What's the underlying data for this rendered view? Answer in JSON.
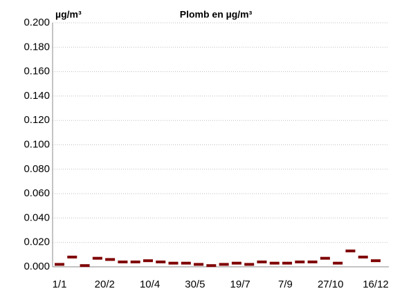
{
  "chart_data": {
    "type": "dash",
    "title": "Plomb en µg/m³",
    "y_axis_label": "µg/m³",
    "x": [
      "1/1",
      "15/1",
      "29/1",
      "12/2",
      "26/2",
      "11/3",
      "25/3",
      "8/4",
      "22/4",
      "6/5",
      "20/5",
      "3/6",
      "17/6",
      "1/7",
      "15/7",
      "29/7",
      "12/8",
      "26/8",
      "9/9",
      "23/9",
      "7/10",
      "21/10",
      "4/11",
      "18/11",
      "2/12",
      "16/12"
    ],
    "values": [
      0.002,
      0.008,
      0.001,
      0.007,
      0.006,
      0.004,
      0.004,
      0.005,
      0.004,
      0.003,
      0.003,
      0.002,
      0.001,
      0.002,
      0.003,
      0.002,
      0.004,
      0.003,
      0.003,
      0.004,
      0.004,
      0.007,
      0.003,
      0.013,
      0.008,
      0.005
    ],
    "color": "#7f0000",
    "xticks": [
      "1/1",
      "20/2",
      "10/4",
      "30/5",
      "19/7",
      "7/9",
      "27/10",
      "16/12"
    ],
    "ylim": [
      0,
      0.2
    ],
    "yticks": [
      {
        "value": 0,
        "label": "0.000"
      },
      {
        "value": 0.02,
        "label": "0.020"
      },
      {
        "value": 0.04,
        "label": "0.040"
      },
      {
        "value": 0.06,
        "label": "0.060"
      },
      {
        "value": 0.08,
        "label": "0.080"
      },
      {
        "value": 0.1,
        "label": "0.100"
      },
      {
        "value": 0.12,
        "label": "0.120"
      },
      {
        "value": 0.14,
        "label": "0.140"
      },
      {
        "value": 0.16,
        "label": "0.160"
      },
      {
        "value": 0.18,
        "label": "0.180"
      },
      {
        "value": 0.2,
        "label": "0.200"
      }
    ],
    "grid": true
  }
}
